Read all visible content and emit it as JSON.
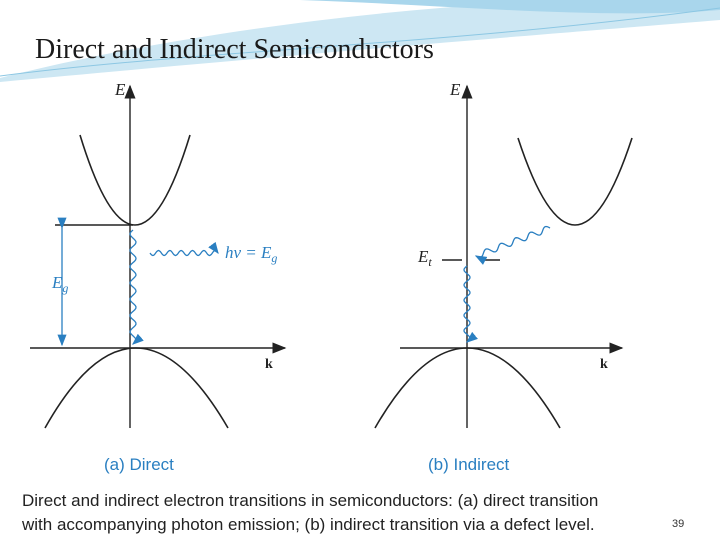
{
  "header": {
    "title": "Direct and Indirect Semiconductors"
  },
  "panels": [
    {
      "energy_label": "E",
      "k_label": "k",
      "photon_label": {
        "main": "hν = E",
        "sub": "g"
      },
      "gap_label": {
        "main": "E",
        "sub": "g"
      },
      "caption": "(a) Direct"
    },
    {
      "energy_label": "E",
      "k_label": "k",
      "defect_label": {
        "main": "E",
        "sub": "t"
      },
      "caption": "(b) Indirect"
    }
  ],
  "figure_caption": [
    "Direct and indirect electron transitions in semiconductors: (a) direct transition",
    "with accompanying photon emission; (b) indirect transition via a defect level."
  ],
  "footer": {
    "page_number": "39"
  }
}
